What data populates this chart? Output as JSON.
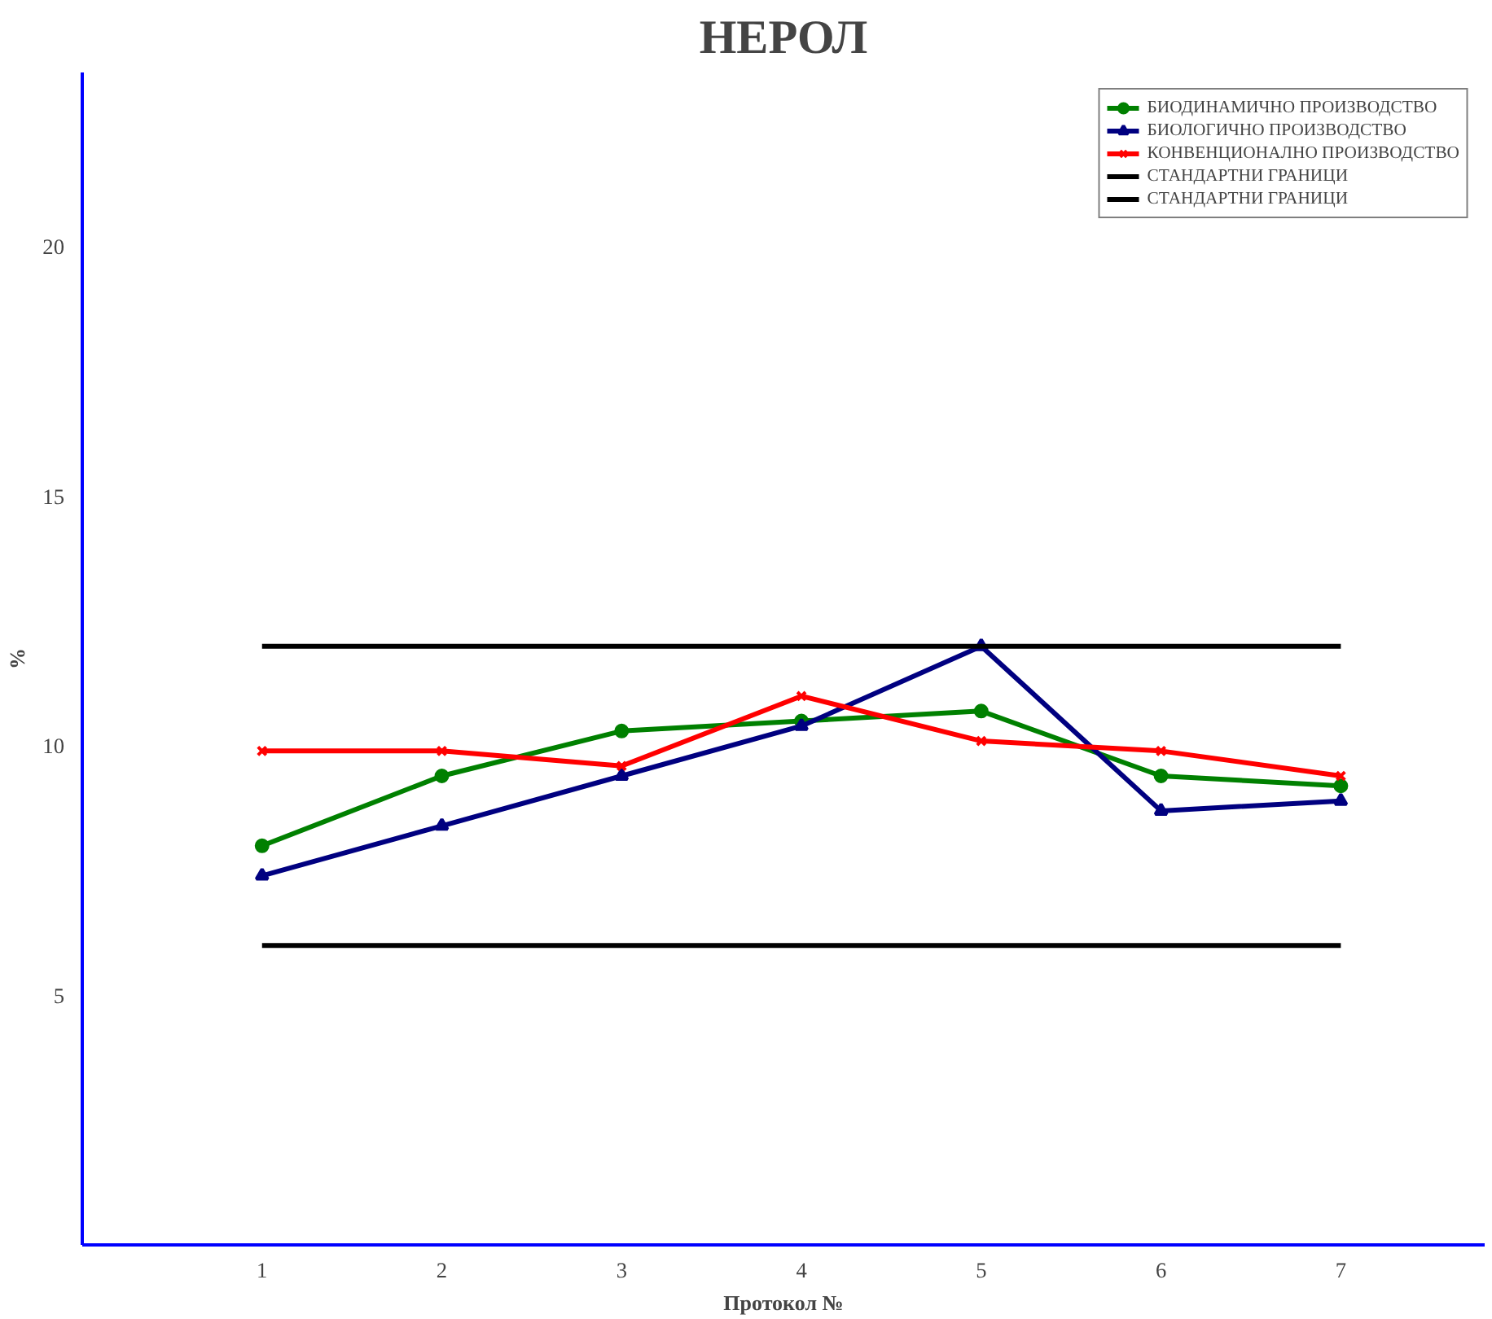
{
  "chart_data": {
    "type": "line",
    "title": "НЕРОЛ",
    "xlabel": "Протокол №",
    "ylabel": "%",
    "x": [
      1,
      2,
      3,
      4,
      5,
      6,
      7
    ],
    "xlim": [
      0,
      7.8
    ],
    "ylim": [
      0,
      23.5
    ],
    "xticks": [
      1,
      2,
      3,
      4,
      5,
      6,
      7
    ],
    "yticks": [
      5,
      10,
      15,
      20
    ],
    "grid": false,
    "legend": "top right",
    "line_style": "solid",
    "series": [
      {
        "name": "БИОДИНАМИЧНО ПРОИЗВОДСТВО",
        "color": "#008000",
        "marker": "circle",
        "values": [
          8.0,
          9.4,
          10.3,
          10.5,
          10.7,
          9.4,
          9.2
        ]
      },
      {
        "name": "БИОЛОГИЧНО ПРОИЗВОДСТВО",
        "color": "#000080",
        "marker": "triangle",
        "values": [
          7.4,
          8.4,
          9.4,
          10.4,
          12.0,
          8.7,
          8.9
        ]
      },
      {
        "name": "КОНВЕНЦИОНАЛНО ПРОИЗВОДСТВО",
        "color": "#ff0000",
        "marker": "cross",
        "values": [
          9.9,
          9.9,
          9.6,
          11.0,
          10.1,
          9.9,
          9.4
        ]
      },
      {
        "name": "СТАНДАРТНИ ГРАНИЦИ",
        "color": "#000000",
        "marker": "none",
        "values": [
          12.0,
          12.0,
          12.0,
          12.0,
          12.0,
          12.0,
          12.0
        ]
      },
      {
        "name": "СТАНДАРТНИ ГРАНИЦИ",
        "color": "#000000",
        "marker": "none",
        "values": [
          6.0,
          6.0,
          6.0,
          6.0,
          6.0,
          6.0,
          6.0
        ]
      }
    ]
  }
}
